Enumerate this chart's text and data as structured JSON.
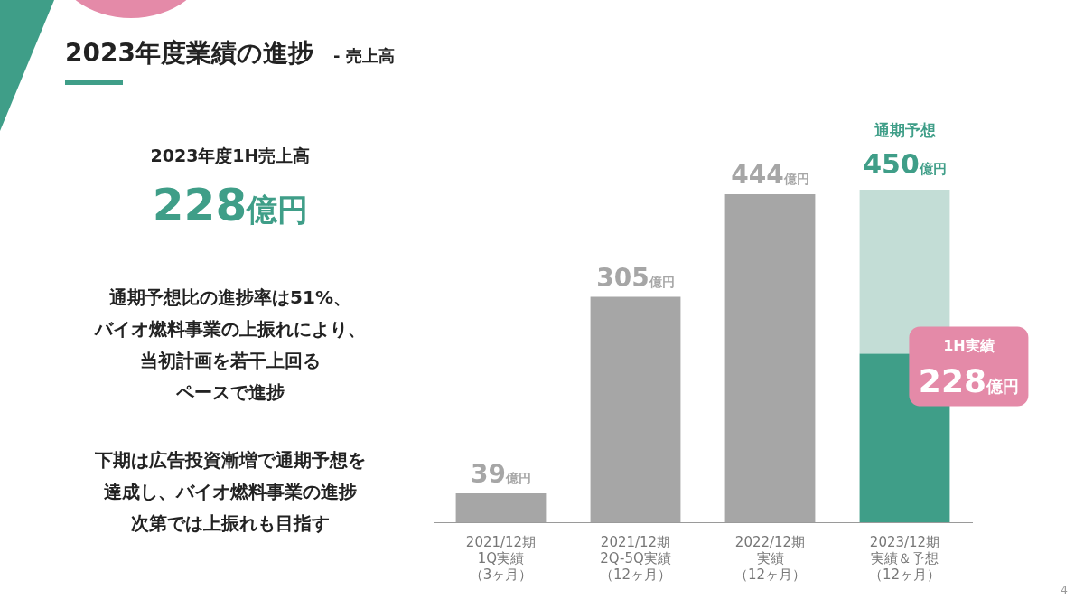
{
  "chart_data": {
    "type": "bar",
    "title": "2023年度業績の進捗",
    "subtitle": "- 売上高",
    "stacked": true,
    "categories": [
      "2021/12期1Q実績（3ヶ月）",
      "2021/12期2Q-5Q実績（12ヶ月）",
      "2022/12期実績（12ヶ月）",
      "2023/12期実績＆予想（12ヶ月）"
    ],
    "series": [
      {
        "colors": [
          "#a6a6a6",
          "#a6a6a6",
          "#a6a6a6",
          "#3f9e88"
        ],
        "values": [
          39,
          305,
          444,
          228
        ],
        "value_labels": [
          "39億円",
          "305億円",
          "444億円",
          "228億円"
        ]
      },
      {
        "color": "#c3ddd6",
        "values": [
          null,
          null,
          null,
          222
        ]
      }
    ],
    "totals": [
      null,
      null,
      null,
      "450億円"
    ],
    "annotations": [
      "2023年度1H売上高",
      "228億円",
      "通期予想比の進捗率は51%、",
      "バイオ燃料事業の上振れにより、",
      "当初計画を若干上回る",
      "ペースで進捗",
      "下期は広告投資漸増で通期予想を",
      "達成し、バイオ燃料事業の進捗",
      "次第では上振れも目指す",
      "通期予想",
      {
        "text": "1H実績",
        "x": "2023/12期実績＆予想（12ヶ月）",
        "y": 228
      },
      "4"
    ],
    "grid": false,
    "legend": false
  }
}
